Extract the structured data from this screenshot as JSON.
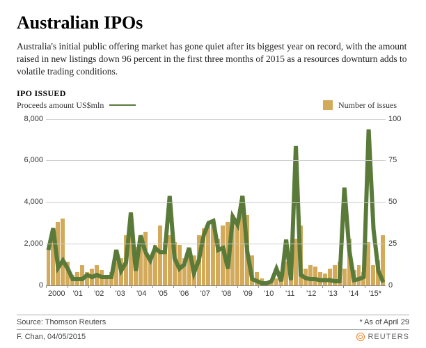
{
  "title": "Australian IPOs",
  "subtitle": "Australia's initial public offering market has gone quiet after its biggest year on record, with the amount raised in new listings down 96 percent in the first three months of 2015 as a resources downturn adds to volatile trading conditions.",
  "chart": {
    "type": "combo-bar-line",
    "chart_title": "IPO ISSUED",
    "left_axis_label": "Proceeds amount US$mln",
    "line_legend": "Proceeds amount US$mln",
    "bar_legend": "Number of issues",
    "x_labels": [
      "2000",
      "'01",
      "'02",
      "'03",
      "'04",
      "'05",
      "'06",
      "'07",
      "'08",
      "'09",
      "'10",
      "'11",
      "'12",
      "'13",
      "'14",
      "'15*"
    ],
    "y_left": {
      "min": 0,
      "max": 8000,
      "ticks": [
        0,
        2000,
        4000,
        6000,
        8000
      ]
    },
    "y_right": {
      "min": 0,
      "max": 100,
      "ticks": [
        0,
        25,
        50,
        75,
        100
      ]
    },
    "bar_color": "#d2aa5a",
    "line_color": "#5a7a3a",
    "grid_color": "#cccccc",
    "background_color": "#ffffff",
    "bars_number_of_issues": [
      22,
      28,
      38,
      40,
      14,
      6,
      8,
      12,
      8,
      10,
      12,
      9,
      6,
      8,
      14,
      16,
      30,
      44,
      23,
      26,
      32,
      18,
      24,
      36,
      26,
      30,
      26,
      24,
      16,
      18,
      18,
      30,
      34,
      36,
      38,
      28,
      36,
      38,
      42,
      40,
      54,
      42,
      18,
      8,
      4,
      2,
      3,
      4,
      8,
      14,
      4,
      28,
      36,
      10,
      12,
      11,
      8,
      7,
      10,
      12,
      14,
      10,
      28,
      9,
      12,
      8,
      26,
      12,
      15,
      30
    ],
    "line_proceeds_usd_mln": [
      1700,
      2750,
      850,
      1200,
      800,
      300,
      300,
      300,
      500,
      400,
      500,
      400,
      400,
      400,
      1700,
      700,
      1100,
      3500,
      700,
      2400,
      1600,
      1200,
      1800,
      1600,
      1600,
      4300,
      1300,
      800,
      1000,
      1800,
      600,
      1200,
      2400,
      3000,
      3100,
      1700,
      1800,
      800,
      3300,
      2900,
      4300,
      1600,
      300,
      200,
      100,
      100,
      200,
      800,
      200,
      2200,
      250,
      6700,
      500,
      350,
      300,
      300,
      250,
      250,
      250,
      200,
      200,
      4700,
      1700,
      250,
      300,
      400,
      7500,
      2700,
      700,
      150
    ]
  },
  "footer": {
    "source": "Source: Thomson Reuters",
    "asof": "* As of April 29",
    "credit": "F. Chan, 04/05/2015",
    "brand": "REUTERS"
  }
}
